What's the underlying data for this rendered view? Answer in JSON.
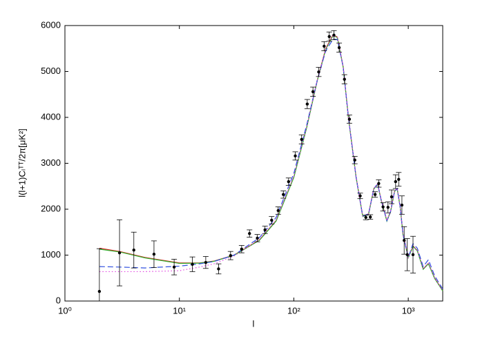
{
  "chart_data": {
    "type": "line",
    "xlabel": "l",
    "ylabel": "l(l+1)Cₗᵀᵀ/2π[μK²]",
    "xscale": "log",
    "xlim": [
      1,
      2000
    ],
    "ylim": [
      0,
      6000
    ],
    "xticks": [
      {
        "value": 1,
        "label": "10⁰"
      },
      {
        "value": 10,
        "label": "10¹"
      },
      {
        "value": 100,
        "label": "10²"
      },
      {
        "value": 1000,
        "label": "10³"
      }
    ],
    "yticks": [
      0,
      1000,
      2000,
      3000,
      4000,
      5000,
      6000
    ],
    "x": [
      2,
      3,
      5,
      10,
      15,
      20,
      30,
      50,
      70,
      100,
      130,
      160,
      190,
      220,
      240,
      270,
      300,
      350,
      400,
      450,
      500,
      540,
      580,
      650,
      700,
      760,
      800,
      850,
      900,
      1000,
      1100,
      1200,
      1350,
      1500,
      1700,
      2000
    ],
    "series": [
      {
        "color": "#e02020",
        "style": "solid",
        "values": [
          1150,
          1080,
          950,
          830,
          830,
          870,
          1000,
          1330,
          1750,
          2700,
          3800,
          4800,
          5500,
          5800,
          5750,
          5100,
          4000,
          2700,
          1850,
          1900,
          2450,
          2550,
          2200,
          1750,
          1950,
          2400,
          2450,
          2050,
          1450,
          950,
          1200,
          1100,
          700,
          820,
          500,
          230
        ]
      },
      {
        "color": "#30b030",
        "style": "solid",
        "values": [
          1130,
          1070,
          940,
          820,
          825,
          865,
          995,
          1320,
          1740,
          2690,
          3790,
          4790,
          5480,
          5780,
          5740,
          5090,
          3990,
          2690,
          1840,
          1890,
          2440,
          2540,
          2190,
          1740,
          1940,
          2390,
          2440,
          2040,
          1440,
          940,
          1190,
          1090,
          690,
          810,
          490,
          220
        ]
      },
      {
        "color": "#3050e0",
        "style": "dashed",
        "values": [
          750,
          740,
          720,
          760,
          810,
          860,
          1000,
          1380,
          1820,
          2780,
          3850,
          4800,
          5450,
          5700,
          5700,
          5100,
          4000,
          2700,
          1850,
          1900,
          2450,
          2550,
          2200,
          1750,
          1950,
          2400,
          2450,
          2050,
          1450,
          950,
          1250,
          1150,
          750,
          900,
          550,
          260
        ]
      },
      {
        "color": "#e040e0",
        "style": "dotted",
        "values": [
          640,
          640,
          640,
          660,
          740,
          810,
          980,
          1340,
          1770,
          2720,
          3800,
          4800,
          5490,
          5790,
          5750,
          5100,
          4000,
          2700,
          1850,
          1900,
          2450,
          2550,
          2200,
          1750,
          1950,
          2400,
          2450,
          2050,
          1450,
          950,
          1200,
          1100,
          700,
          830,
          500,
          230
        ]
      }
    ],
    "error_points": {
      "color": "#000000",
      "x": [
        2,
        3,
        4,
        6,
        9,
        13,
        17,
        22,
        28,
        35,
        41,
        48,
        56,
        64,
        73,
        81,
        90,
        103,
        117,
        131,
        147,
        165,
        184,
        204,
        224,
        249,
        277,
        306,
        341,
        380,
        426,
        466,
        513,
        552,
        602,
        665,
        715,
        775,
        825,
        880,
        921,
        980,
        1100
      ],
      "values": [
        210,
        1050,
        1110,
        1020,
        740,
        800,
        840,
        700,
        990,
        1130,
        1470,
        1370,
        1550,
        1760,
        1970,
        2320,
        2600,
        3160,
        3520,
        4290,
        4560,
        4990,
        5550,
        5760,
        5790,
        5520,
        4830,
        3960,
        3070,
        2290,
        1820,
        1830,
        2320,
        2560,
        2050,
        2040,
        2270,
        2600,
        2650,
        2090,
        1320,
        1010,
        1010
      ],
      "errors": [
        930,
        720,
        390,
        290,
        170,
        160,
        130,
        110,
        90,
        80,
        80,
        80,
        80,
        80,
        80,
        80,
        80,
        90,
        100,
        100,
        100,
        100,
        100,
        100,
        100,
        100,
        100,
        90,
        80,
        60,
        50,
        50,
        60,
        80,
        90,
        120,
        150,
        150,
        150,
        200,
        300,
        350,
        400
      ]
    }
  }
}
